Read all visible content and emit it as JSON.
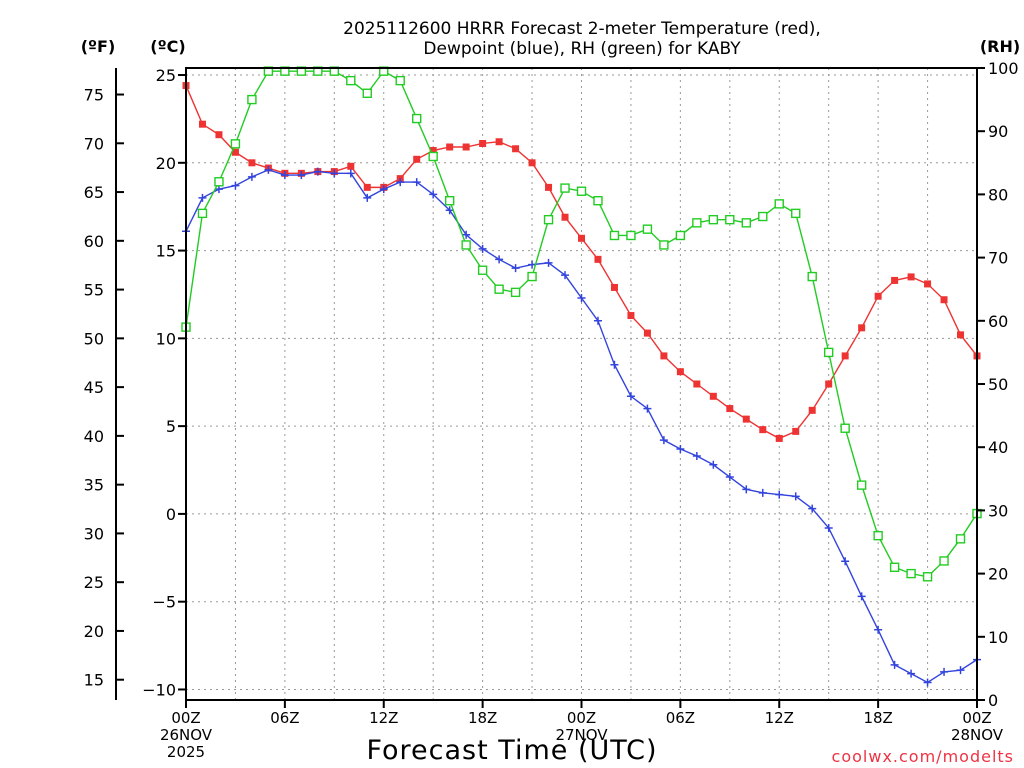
{
  "chart_data": {
    "type": "line",
    "title_lines": [
      "2025112600 HRRR Forecast 2-meter Temperature (red),",
      "Dewpoint (blue), RH (green) for KABY"
    ],
    "xlabel": "Forecast Time (UTC)",
    "watermark": "coolwx.com/modelts",
    "x_range_hours": [
      0,
      48
    ],
    "x_ticks": [
      {
        "h": 0,
        "lines": [
          "00Z",
          "26NOV",
          "2025"
        ]
      },
      {
        "h": 6,
        "lines": [
          "06Z"
        ]
      },
      {
        "h": 12,
        "lines": [
          "12Z"
        ]
      },
      {
        "h": 18,
        "lines": [
          "18Z"
        ]
      },
      {
        "h": 24,
        "lines": [
          "00Z",
          "27NOV"
        ]
      },
      {
        "h": 30,
        "lines": [
          "06Z"
        ]
      },
      {
        "h": 36,
        "lines": [
          "12Z"
        ]
      },
      {
        "h": 42,
        "lines": [
          "18Z"
        ]
      },
      {
        "h": 48,
        "lines": [
          "00Z",
          "28NOV"
        ]
      }
    ],
    "y_celsius": {
      "label": "(ºC)",
      "range": [
        -10.6,
        25.4
      ],
      "ticks": [
        -10,
        -5,
        0,
        5,
        10,
        15,
        20,
        25
      ]
    },
    "y_fahrenheit": {
      "label": "(ºF)",
      "ticks": [
        15,
        20,
        25,
        30,
        35,
        40,
        45,
        50,
        55,
        60,
        65,
        70,
        75
      ]
    },
    "y_rh": {
      "label": "(RH)",
      "range": [
        0,
        100
      ],
      "ticks": [
        0,
        10,
        20,
        30,
        40,
        50,
        60,
        70,
        80,
        90,
        100
      ]
    },
    "series": [
      {
        "key": "temperature",
        "axis": "celsius",
        "color": "#ee3333",
        "marker": "filled-square",
        "values": [
          24.4,
          22.2,
          21.6,
          20.6,
          20.0,
          19.7,
          19.4,
          19.4,
          19.5,
          19.5,
          19.8,
          18.6,
          18.6,
          19.1,
          20.2,
          20.7,
          20.9,
          20.9,
          21.1,
          21.2,
          20.8,
          20.0,
          18.6,
          16.9,
          15.7,
          14.5,
          12.9,
          11.3,
          10.3,
          9.0,
          8.1,
          7.4,
          6.7,
          6.0,
          5.4,
          4.8,
          4.3,
          4.7,
          5.9,
          7.4,
          9.0,
          10.6,
          12.4,
          13.3,
          13.5,
          13.1,
          12.2,
          10.2,
          9.0
        ]
      },
      {
        "key": "dewpoint",
        "axis": "celsius",
        "color": "#3344dd",
        "marker": "plus",
        "values": [
          16.1,
          18.0,
          18.5,
          18.7,
          19.2,
          19.6,
          19.3,
          19.3,
          19.5,
          19.4,
          19.4,
          18.0,
          18.5,
          18.9,
          18.9,
          18.2,
          17.3,
          15.9,
          15.1,
          14.5,
          14.0,
          14.2,
          14.3,
          13.6,
          12.3,
          11.0,
          8.5,
          6.7,
          6.0,
          4.2,
          3.7,
          3.3,
          2.8,
          2.1,
          1.4,
          1.2,
          1.1,
          1.0,
          0.3,
          -0.8,
          -2.7,
          -4.7,
          -6.6,
          -8.6,
          -9.1,
          -9.6,
          -9.0,
          -8.9,
          -8.3
        ]
      },
      {
        "key": "rh",
        "axis": "rh",
        "color": "#22cc22",
        "marker": "open-square",
        "values": [
          59,
          77,
          82,
          88,
          95,
          99.5,
          99.5,
          99.5,
          99.5,
          99.5,
          98,
          96,
          99.5,
          98,
          92,
          86,
          79,
          72,
          68,
          65,
          64.5,
          67,
          76,
          81,
          80.5,
          79,
          73.5,
          73.5,
          74.5,
          72,
          73.5,
          75.5,
          76,
          76,
          75.5,
          76.5,
          78.5,
          77,
          67,
          55,
          43,
          34,
          26,
          21,
          20,
          19.5,
          22,
          25.5,
          29.5
        ]
      }
    ]
  }
}
